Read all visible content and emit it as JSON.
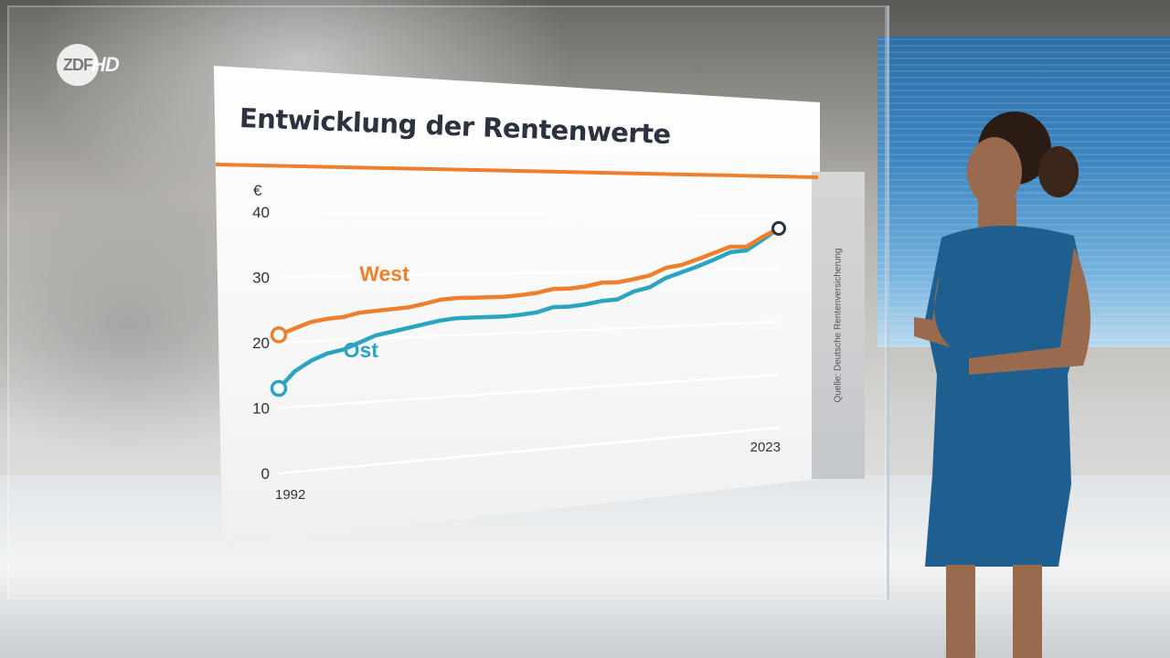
{
  "broadcaster": {
    "logo_mark": "ZDF",
    "logo_suffix": "HD"
  },
  "panel": {
    "title": "Entwicklung der Rentenwerte",
    "source": "Quelle: Deutsche Rentenversicherung"
  },
  "chart_data": {
    "type": "line",
    "title": "Entwicklung der Rentenwerte",
    "ylabel": "€",
    "xlabel": "",
    "ylim": [
      0,
      40
    ],
    "y_ticks": [
      0,
      10,
      20,
      30,
      40
    ],
    "x_tick_labels": [
      "1992",
      "2023"
    ],
    "x": [
      1992,
      1993,
      1994,
      1995,
      1996,
      1997,
      1998,
      1999,
      2000,
      2001,
      2002,
      2003,
      2004,
      2005,
      2006,
      2007,
      2008,
      2009,
      2010,
      2011,
      2012,
      2013,
      2014,
      2015,
      2016,
      2017,
      2018,
      2019,
      2020,
      2021,
      2022,
      2023
    ],
    "series": [
      {
        "name": "West",
        "color": "#ee7f2d",
        "values": [
          21.2,
          22.1,
          23.0,
          23.4,
          23.6,
          24.2,
          24.4,
          24.6,
          24.8,
          25.3,
          25.9,
          26.1,
          26.1,
          26.1,
          26.1,
          26.3,
          26.6,
          27.2,
          27.2,
          27.5,
          28.1,
          28.1,
          28.6,
          29.2,
          30.5,
          31.0,
          32.0,
          33.1,
          34.2,
          34.2,
          36.0,
          37.6
        ]
      },
      {
        "name": "Ost",
        "color": "#2aa4c0",
        "values": [
          13.0,
          15.5,
          17.0,
          18.0,
          18.5,
          19.5,
          20.5,
          21.0,
          21.5,
          22.0,
          22.5,
          22.8,
          22.8,
          22.8,
          22.8,
          23.0,
          23.3,
          24.1,
          24.1,
          24.4,
          24.9,
          25.1,
          26.4,
          27.1,
          28.7,
          29.7,
          30.7,
          31.9,
          33.2,
          33.5,
          35.5,
          37.6
        ]
      }
    ],
    "series_labels": [
      "West",
      "Ost"
    ],
    "grid": true
  },
  "colors": {
    "accent": "#ee7f2d",
    "west": "#ee7f2d",
    "ost": "#2aa4c0",
    "title": "#2c3240"
  }
}
